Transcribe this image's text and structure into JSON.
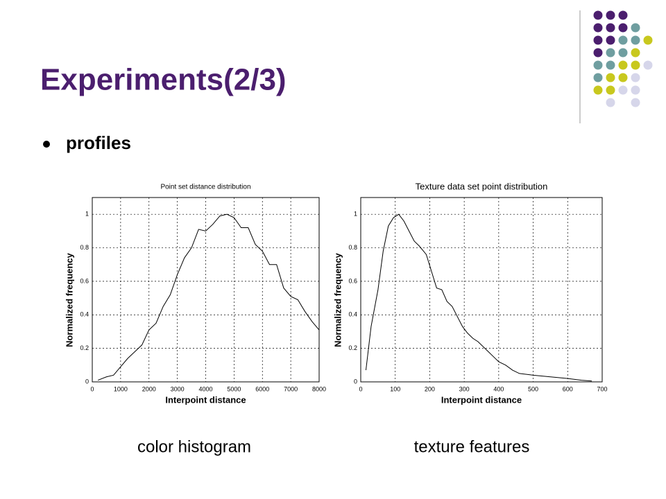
{
  "title": "Experiments(2/3)",
  "bullet": "profiles",
  "captions": [
    "color histogram",
    "texture features"
  ],
  "chart_data": [
    {
      "type": "line",
      "title": "Point set distance distribution",
      "x_label": "Interpoint distance",
      "y_label": "Normalized frequency",
      "color": "#000000",
      "grid": true,
      "x": [
        200,
        500,
        750,
        1000,
        1250,
        1500,
        1750,
        2000,
        2250,
        2500,
        2750,
        3000,
        3250,
        3500,
        3750,
        4000,
        4250,
        4500,
        4750,
        5000,
        5250,
        5500,
        5750,
        6000,
        6250,
        6500,
        6750,
        7000,
        7250,
        7500,
        7750,
        8000
      ],
      "values": [
        0.01,
        0.03,
        0.04,
        0.09,
        0.14,
        0.18,
        0.22,
        0.31,
        0.35,
        0.45,
        0.52,
        0.64,
        0.74,
        0.8,
        0.91,
        0.9,
        0.94,
        0.99,
        1.0,
        0.98,
        0.92,
        0.92,
        0.82,
        0.78,
        0.7,
        0.7,
        0.56,
        0.51,
        0.49,
        0.42,
        0.36,
        0.31
      ],
      "xlim": [
        0,
        8000
      ],
      "xticks": [
        0,
        1000,
        2000,
        3000,
        4000,
        5000,
        6000,
        7000,
        8000
      ],
      "ylim": [
        0,
        1.1
      ],
      "yticks": [
        0,
        0.2,
        0.4,
        0.6,
        0.8,
        1
      ]
    },
    {
      "type": "line",
      "title": "Texture data set point distribution",
      "x_label": "Interpoint distance",
      "y_label": "Normalized frequency",
      "color": "#000000",
      "grid": true,
      "x": [
        15,
        30,
        50,
        65,
        80,
        95,
        110,
        125,
        140,
        155,
        170,
        190,
        205,
        220,
        235,
        250,
        265,
        280,
        295,
        310,
        325,
        340,
        360,
        380,
        400,
        420,
        440,
        460,
        500,
        550,
        600,
        640,
        670
      ],
      "values": [
        0.07,
        0.33,
        0.55,
        0.78,
        0.93,
        0.98,
        1.0,
        0.96,
        0.9,
        0.84,
        0.81,
        0.76,
        0.66,
        0.56,
        0.55,
        0.48,
        0.45,
        0.39,
        0.33,
        0.29,
        0.26,
        0.24,
        0.2,
        0.16,
        0.12,
        0.1,
        0.07,
        0.05,
        0.04,
        0.03,
        0.02,
        0.01,
        0.005
      ],
      "xlim": [
        0,
        700
      ],
      "xticks": [
        0,
        100,
        200,
        300,
        400,
        500,
        600,
        700
      ],
      "ylim": [
        0,
        1.1
      ],
      "yticks": [
        0,
        0.2,
        0.4,
        0.6,
        0.8,
        1
      ]
    }
  ]
}
